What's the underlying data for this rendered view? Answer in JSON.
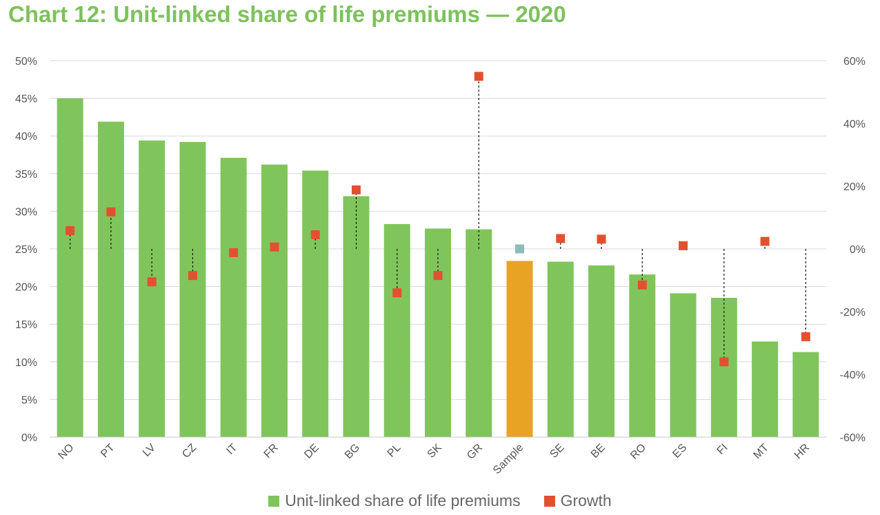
{
  "title": "Chart 12: Unit-linked share of life premiums — 2020",
  "colors": {
    "bar": "#80c55c",
    "bar_highlight": "#e8a224",
    "growth": "#e2512f",
    "growth_highlight": "#8cbcbc",
    "title": "#7dc25b"
  },
  "chart_data": {
    "type": "bar",
    "categories": [
      "NO",
      "PT",
      "LV",
      "CZ",
      "IT",
      "FR",
      "DE",
      "BG",
      "PL",
      "SK",
      "GR",
      "Sample",
      "SE",
      "BE",
      "RO",
      "ES",
      "FI",
      "MT",
      "HR"
    ],
    "highlight_category": "Sample",
    "series": [
      {
        "name": "Unit-linked share of life premiums",
        "axis": "left",
        "kind": "bar",
        "values": [
          45.0,
          41.9,
          39.4,
          39.2,
          37.1,
          36.2,
          35.4,
          32.0,
          28.3,
          27.7,
          27.6,
          23.4,
          23.3,
          22.8,
          21.6,
          19.1,
          18.5,
          12.7,
          11.3
        ]
      },
      {
        "name": "Growth",
        "axis": "right",
        "kind": "marker",
        "values": [
          5.8,
          11.8,
          -10.5,
          -8.5,
          -1.2,
          0.6,
          4.5,
          18.8,
          -14.0,
          -8.5,
          55.0,
          0.0,
          3.3,
          3.1,
          -11.5,
          1.0,
          -36.0,
          2.4,
          -28.0
        ]
      }
    ],
    "y_left": {
      "min": 0,
      "max": 50,
      "step": 5,
      "tick_labels": [
        "0%",
        "5%",
        "10%",
        "15%",
        "20%",
        "25%",
        "30%",
        "35%",
        "40%",
        "45%",
        "50%"
      ]
    },
    "y_right": {
      "min": -60,
      "max": 60,
      "step": 20,
      "tick_labels": [
        "-60%",
        "-40%",
        "-20%",
        "0%",
        "20%",
        "40%",
        "60%"
      ]
    },
    "grid": true,
    "legend_position": "bottom"
  },
  "legend": {
    "bar_label": "Unit-linked share of life premiums",
    "growth_label": "Growth"
  }
}
